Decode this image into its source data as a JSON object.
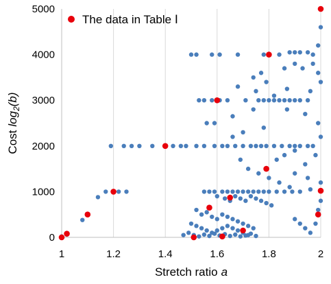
{
  "chart_data": {
    "type": "scatter",
    "title": "",
    "xlabel": "Stretch ratio",
    "xlabel_var": "a",
    "ylabel": "Cost",
    "ylabel_var": "log",
    "ylabel_sub": "2",
    "ylabel_arg": "(b)",
    "xlim": [
      1,
      2
    ],
    "ylim": [
      0,
      5000
    ],
    "x_ticks": [
      "1",
      "1.2",
      "1.4",
      "1.6",
      "1.8",
      "2"
    ],
    "y_ticks": [
      "0",
      "1000",
      "2000",
      "3000",
      "4000",
      "5000"
    ],
    "grid": "vertical-major",
    "legend_position": "top-left",
    "colors": {
      "background_points": "#4a7ebb",
      "highlight": "#e8000b",
      "grid": "#d9d9d9"
    },
    "series": [
      {
        "name": "",
        "color": "#4a7ebb",
        "points": [
          [
            1.0,
            20
          ],
          [
            1.02,
            60
          ],
          [
            1.08,
            380
          ],
          [
            1.14,
            880
          ],
          [
            1.17,
            1000
          ],
          [
            1.22,
            1000
          ],
          [
            1.25,
            1000
          ],
          [
            1.19,
            2000
          ],
          [
            1.24,
            2000
          ],
          [
            1.27,
            2000
          ],
          [
            1.3,
            2000
          ],
          [
            1.35,
            2000
          ],
          [
            1.43,
            2000
          ],
          [
            1.46,
            2000
          ],
          [
            1.48,
            2000
          ],
          [
            1.52,
            2000
          ],
          [
            1.55,
            2000
          ],
          [
            1.59,
            2000
          ],
          [
            1.62,
            2000
          ],
          [
            1.64,
            2000
          ],
          [
            1.67,
            2000
          ],
          [
            1.7,
            2000
          ],
          [
            1.73,
            2000
          ],
          [
            1.75,
            2000
          ],
          [
            1.77,
            2000
          ],
          [
            1.79,
            2000
          ],
          [
            1.82,
            2000
          ],
          [
            1.85,
            2000
          ],
          [
            1.88,
            2000
          ],
          [
            1.9,
            2000
          ],
          [
            1.92,
            2000
          ],
          [
            1.95,
            2000
          ],
          [
            1.97,
            2000
          ],
          [
            1.5,
            4000
          ],
          [
            1.52,
            4000
          ],
          [
            1.58,
            4000
          ],
          [
            1.61,
            4000
          ],
          [
            1.68,
            4000
          ],
          [
            1.78,
            4000
          ],
          [
            1.84,
            4000
          ],
          [
            1.88,
            4050
          ],
          [
            1.9,
            4050
          ],
          [
            1.92,
            4050
          ],
          [
            1.95,
            4050
          ],
          [
            1.97,
            4000
          ],
          [
            1.99,
            4200
          ],
          [
            2.0,
            4600
          ],
          [
            1.53,
            3000
          ],
          [
            1.55,
            3000
          ],
          [
            1.58,
            3000
          ],
          [
            1.61,
            3000
          ],
          [
            1.64,
            3000
          ],
          [
            1.71,
            3000
          ],
          [
            1.76,
            3000
          ],
          [
            1.78,
            3000
          ],
          [
            1.8,
            3000
          ],
          [
            1.82,
            3000
          ],
          [
            1.84,
            3000
          ],
          [
            1.86,
            3000
          ],
          [
            1.88,
            3000
          ],
          [
            1.9,
            3000
          ],
          [
            1.92,
            3000
          ],
          [
            1.95,
            3000
          ],
          [
            1.56,
            2500
          ],
          [
            1.59,
            2500
          ],
          [
            1.66,
            2650
          ],
          [
            1.74,
            2800
          ],
          [
            1.87,
            2800
          ],
          [
            1.94,
            2700
          ],
          [
            1.99,
            2500
          ],
          [
            2.0,
            2200
          ],
          [
            1.74,
            3500
          ],
          [
            1.77,
            3600
          ],
          [
            1.79,
            3400
          ],
          [
            1.86,
            3700
          ],
          [
            1.9,
            3800
          ],
          [
            1.93,
            3700
          ],
          [
            1.97,
            3800
          ],
          [
            1.99,
            3600
          ],
          [
            2.0,
            3400
          ],
          [
            1.68,
            3300
          ],
          [
            1.75,
            3200
          ],
          [
            1.82,
            3100
          ],
          [
            1.87,
            3250
          ],
          [
            1.96,
            3200
          ],
          [
            1.66,
            2200
          ],
          [
            1.7,
            2300
          ],
          [
            1.78,
            2400
          ],
          [
            1.83,
            1700
          ],
          [
            1.86,
            1800
          ],
          [
            1.9,
            1900
          ],
          [
            1.94,
            1600
          ],
          [
            1.98,
            1800
          ],
          [
            1.69,
            1700
          ],
          [
            1.72,
            1500
          ],
          [
            1.76,
            1400
          ],
          [
            1.8,
            1300
          ],
          [
            1.84,
            1200
          ],
          [
            1.88,
            1100
          ],
          [
            1.92,
            1000
          ],
          [
            1.96,
            1050
          ],
          [
            1.55,
            1000
          ],
          [
            1.57,
            1000
          ],
          [
            1.59,
            1000
          ],
          [
            1.62,
            1000
          ],
          [
            1.64,
            1000
          ],
          [
            1.66,
            1000
          ],
          [
            1.68,
            1000
          ],
          [
            1.7,
            1000
          ],
          [
            1.72,
            1000
          ],
          [
            1.74,
            1000
          ],
          [
            1.76,
            1000
          ],
          [
            1.78,
            1000
          ],
          [
            1.8,
            1000
          ],
          [
            1.83,
            1000
          ],
          [
            1.86,
            1000
          ],
          [
            1.89,
            1000
          ],
          [
            1.6,
            900
          ],
          [
            1.63,
            850
          ],
          [
            1.65,
            800
          ],
          [
            1.67,
            900
          ],
          [
            1.69,
            850
          ],
          [
            1.71,
            800
          ],
          [
            1.73,
            900
          ],
          [
            1.75,
            850
          ],
          [
            1.77,
            800
          ],
          [
            1.79,
            750
          ],
          [
            1.81,
            700
          ],
          [
            1.52,
            600
          ],
          [
            1.54,
            500
          ],
          [
            1.56,
            550
          ],
          [
            1.58,
            450
          ],
          [
            1.6,
            400
          ],
          [
            1.62,
            500
          ],
          [
            1.64,
            450
          ],
          [
            1.66,
            400
          ],
          [
            1.68,
            350
          ],
          [
            1.7,
            300
          ],
          [
            1.72,
            250
          ],
          [
            1.74,
            200
          ],
          [
            1.5,
            300
          ],
          [
            1.52,
            250
          ],
          [
            1.54,
            200
          ],
          [
            1.56,
            150
          ],
          [
            1.58,
            100
          ],
          [
            1.6,
            150
          ],
          [
            1.62,
            200
          ],
          [
            1.64,
            250
          ],
          [
            1.66,
            200
          ],
          [
            1.68,
            150
          ],
          [
            1.7,
            100
          ],
          [
            1.72,
            50
          ],
          [
            1.47,
            50
          ],
          [
            1.49,
            100
          ],
          [
            1.51,
            50
          ],
          [
            1.53,
            20
          ],
          [
            1.55,
            60
          ],
          [
            1.57,
            30
          ],
          [
            1.59,
            80
          ],
          [
            1.61,
            40
          ],
          [
            1.63,
            70
          ],
          [
            1.65,
            30
          ],
          [
            1.67,
            60
          ],
          [
            1.69,
            20
          ],
          [
            1.71,
            40
          ],
          [
            1.73,
            80
          ],
          [
            1.75,
            30
          ],
          [
            1.9,
            400
          ],
          [
            1.92,
            300
          ],
          [
            1.94,
            200
          ],
          [
            1.96,
            100
          ],
          [
            1.98,
            300
          ],
          [
            1.99,
            600
          ],
          [
            2.0,
            800
          ],
          [
            2.0,
            1200
          ],
          [
            1.95,
            1300
          ],
          [
            1.9,
            1400
          ]
        ]
      },
      {
        "name": "The data in Table Ⅰ",
        "color": "#e8000b",
        "points": [
          [
            1.0,
            0
          ],
          [
            1.02,
            80
          ],
          [
            1.1,
            500
          ],
          [
            1.2,
            1000
          ],
          [
            1.4,
            2000
          ],
          [
            1.6,
            3000
          ],
          [
            1.8,
            4000
          ],
          [
            2.0,
            5000
          ],
          [
            1.51,
            0
          ],
          [
            1.57,
            650
          ],
          [
            1.62,
            20
          ],
          [
            1.65,
            870
          ],
          [
            1.7,
            150
          ],
          [
            1.79,
            1500
          ],
          [
            2.0,
            1020
          ],
          [
            1.99,
            500
          ]
        ]
      }
    ]
  }
}
